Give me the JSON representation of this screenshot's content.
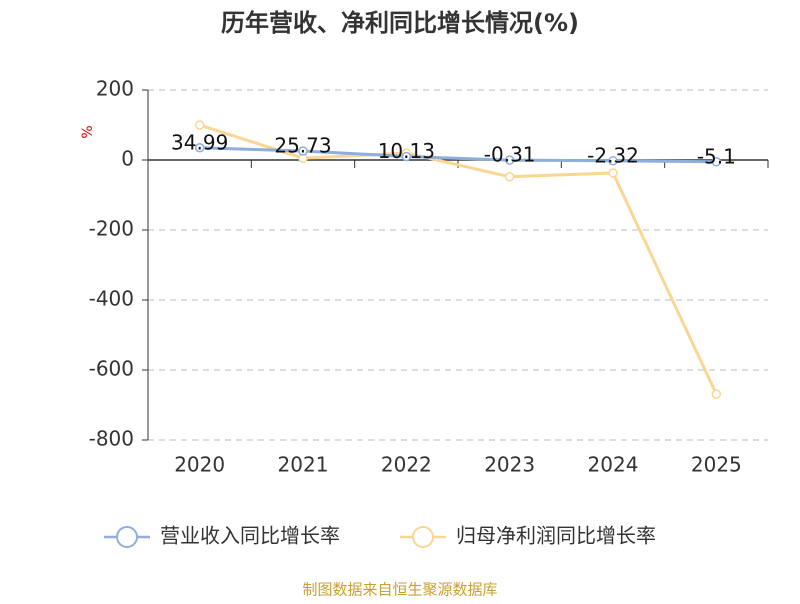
{
  "chart_data": {
    "type": "line",
    "title": "历年营收、净利同比增长情况(%)",
    "y_label": "%",
    "categories": [
      "2020",
      "2021",
      "2022",
      "2023",
      "2024",
      "2025"
    ],
    "series": [
      {
        "name": "营业收入同比增长率",
        "color": "#8eaedb",
        "values": [
          34.99,
          25.73,
          10.13,
          -0.31,
          -2.32,
          -5.1
        ],
        "data_labels": true
      },
      {
        "name": "归母净利润同比增长率",
        "color": "#fbd693",
        "values": [
          100,
          5,
          20,
          -48,
          -37,
          -669
        ],
        "data_labels": false
      }
    ],
    "ylim": [
      -800,
      200
    ],
    "yticks": [
      -800,
      -600,
      -400,
      -200,
      0,
      200
    ],
    "grid": true,
    "source": "制图数据来自恒生聚源数据库"
  }
}
